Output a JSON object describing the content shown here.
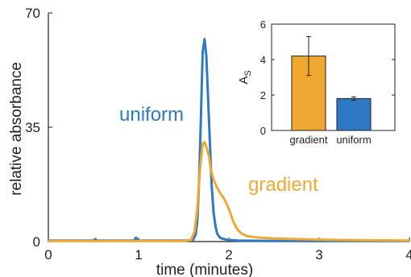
{
  "chart_data": [
    {
      "type": "line",
      "xlabel": "time (minutes)",
      "ylabel": "relative absorbance",
      "xlim": [
        0,
        4
      ],
      "ylim": [
        0,
        70
      ],
      "xticks": [
        0,
        1,
        2,
        3,
        4
      ],
      "yticks": [
        0,
        35,
        70
      ],
      "grid": false,
      "series": [
        {
          "name": "uniform",
          "color": "#2f78c4",
          "x": [
            0,
            0.5,
            0.52,
            0.54,
            0.95,
            0.97,
            0.99,
            1.5,
            1.6,
            1.63,
            1.65,
            1.67,
            1.69,
            1.71,
            1.73,
            1.75,
            1.77,
            1.79,
            1.81,
            1.83,
            1.85,
            1.87,
            1.9,
            1.95,
            2.0,
            2.1,
            2.5,
            3.0,
            4.0
          ],
          "y": [
            0.3,
            0.3,
            0.8,
            0.3,
            0.3,
            1.2,
            0.3,
            0.3,
            0.4,
            2,
            6,
            18,
            38,
            58,
            62,
            57,
            44,
            30,
            17,
            9,
            5,
            2.5,
            1.2,
            0.7,
            0.5,
            0.3,
            0.2,
            0.2,
            0.2
          ]
        },
        {
          "name": "gradient",
          "color": "#f0a830",
          "x": [
            0,
            1.5,
            1.58,
            1.62,
            1.65,
            1.68,
            1.71,
            1.73,
            1.75,
            1.78,
            1.8,
            1.83,
            1.86,
            1.9,
            1.95,
            2.0,
            2.05,
            2.1,
            2.15,
            2.2,
            2.3,
            2.5,
            3.0,
            3.5,
            4.0
          ],
          "y": [
            0.2,
            0.2,
            0.5,
            3,
            10,
            22,
            30,
            30.5,
            29,
            26,
            22,
            19,
            17,
            15,
            13,
            10,
            6,
            3.5,
            2.3,
            1.7,
            1.3,
            0.9,
            0.6,
            0.4,
            0.3
          ]
        }
      ],
      "annotations": [
        {
          "text": "uniform",
          "color": "#2f78c4"
        },
        {
          "text": "gradient",
          "color": "#f0a830"
        }
      ]
    },
    {
      "type": "bar",
      "ylabel_main": "A",
      "ylabel_sub": "S",
      "categories": [
        "gradient",
        "uniform"
      ],
      "values": [
        4.2,
        1.8
      ],
      "errors": [
        1.1,
        0.1
      ],
      "colors": [
        "#f0a830",
        "#2f78c4"
      ],
      "ylim": [
        0,
        6
      ],
      "yticks": [
        0,
        2,
        4,
        6
      ],
      "grid": false
    }
  ]
}
